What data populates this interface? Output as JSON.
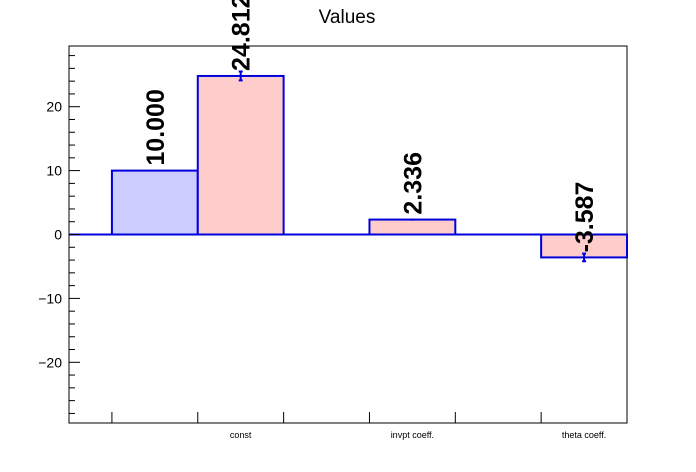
{
  "chart_data": {
    "type": "bar",
    "title": "Values",
    "xlabel": "",
    "ylabel": "",
    "categories": [
      "",
      "const",
      "",
      "invpt coeff.",
      "",
      "theta coeff."
    ],
    "ylim": [
      -29.5,
      29.5
    ],
    "yticks": [
      -20,
      -10,
      0,
      10,
      20
    ],
    "ytick_labels": [
      "−20",
      "−10",
      "0",
      "10",
      "20"
    ],
    "grid": false,
    "series": [
      {
        "fill": "#ccccff",
        "stroke": "#0000dd",
        "points": [
          {
            "category": 0,
            "value": 10.0,
            "label": "10.000"
          }
        ]
      },
      {
        "fill": "#ffcccc",
        "stroke": "#0000dd",
        "points": [
          {
            "category": 1,
            "value": 24.812,
            "error": 0.7,
            "label": "24.812"
          },
          {
            "category": 3,
            "value": 2.336,
            "error": 0.0,
            "label": "2.336"
          },
          {
            "category": 5,
            "value": -3.587,
            "error": 0.6,
            "label": "-3.587"
          }
        ]
      }
    ]
  }
}
